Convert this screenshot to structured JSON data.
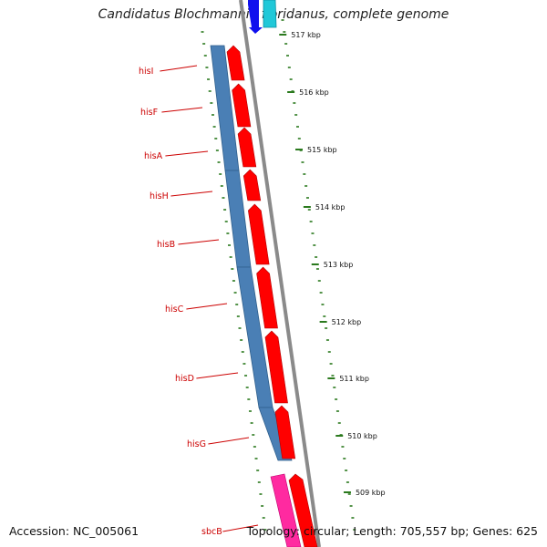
{
  "title": "Candidatus Blochmannia floridanus, complete genome",
  "footer": {
    "accession": "Accession: NC_005061",
    "stats": "Topology: circular; Length: 705,557 bp; Genes: 625"
  },
  "colors": {
    "backbone": "#8a8a8a",
    "tick": "#2b7a1e",
    "gene_forward": "#ff0000",
    "gene_pink": "#ff2aa0",
    "operon_bar": "#4a7fb5",
    "gene_label": "#cc0000",
    "gene_blue": "#1010ee",
    "gene_cyan": "#20c8d8"
  },
  "scale_labels": [
    "517 kbp",
    "516 kbp",
    "515 kbp",
    "514 kbp",
    "513 kbp",
    "512 kbp",
    "511 kbp",
    "510 kbp",
    "509 kbp"
  ],
  "gene_labels": [
    "hisI",
    "hisF",
    "hisA",
    "hisH",
    "hisB",
    "hisC",
    "hisD",
    "hisG",
    "sbcB"
  ]
}
